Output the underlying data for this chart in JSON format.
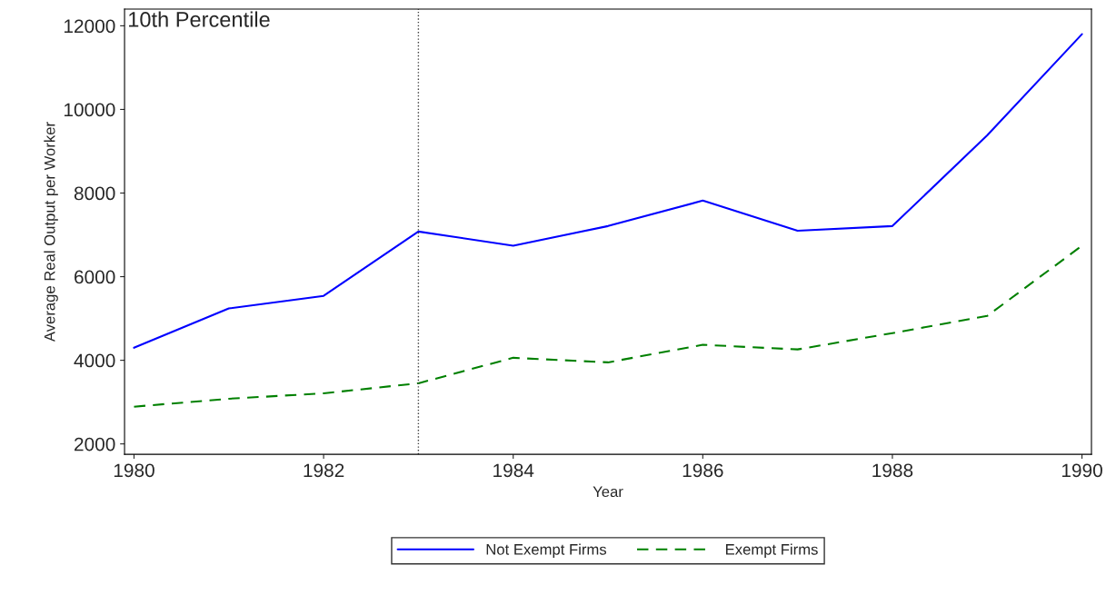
{
  "chart_data": {
    "type": "line",
    "title": "10th Percentile",
    "xlabel": "Year",
    "ylabel": "Average Real Output per Worker",
    "x": [
      1980,
      1981,
      1982,
      1983,
      1984,
      1985,
      1986,
      1987,
      1988,
      1989,
      1990
    ],
    "series": [
      {
        "name": "Not Exempt Firms",
        "color": "#0000ff",
        "line_style": "solid",
        "values": [
          4300,
          5240,
          5540,
          7080,
          6740,
          7210,
          7820,
          7100,
          7210,
          9380,
          11800
        ]
      },
      {
        "name": "Exempt Firms",
        "color": "#008000",
        "line_style": "dashed",
        "values": [
          2890,
          3080,
          3210,
          3450,
          4060,
          3950,
          4370,
          4260,
          4650,
          5060,
          6740
        ]
      }
    ],
    "xlim": [
      1979.9,
      1990.1
    ],
    "xticks": [
      1980,
      1982,
      1984,
      1986,
      1988,
      1990
    ],
    "ylim": [
      1750,
      12400
    ],
    "yticks": [
      2000,
      4000,
      6000,
      8000,
      10000,
      12000
    ],
    "ref_lines": [
      {
        "axis": "x",
        "value": 1983,
        "color": "#404040",
        "line_style": "dotted"
      }
    ],
    "grid": false,
    "legend": "bottom"
  }
}
